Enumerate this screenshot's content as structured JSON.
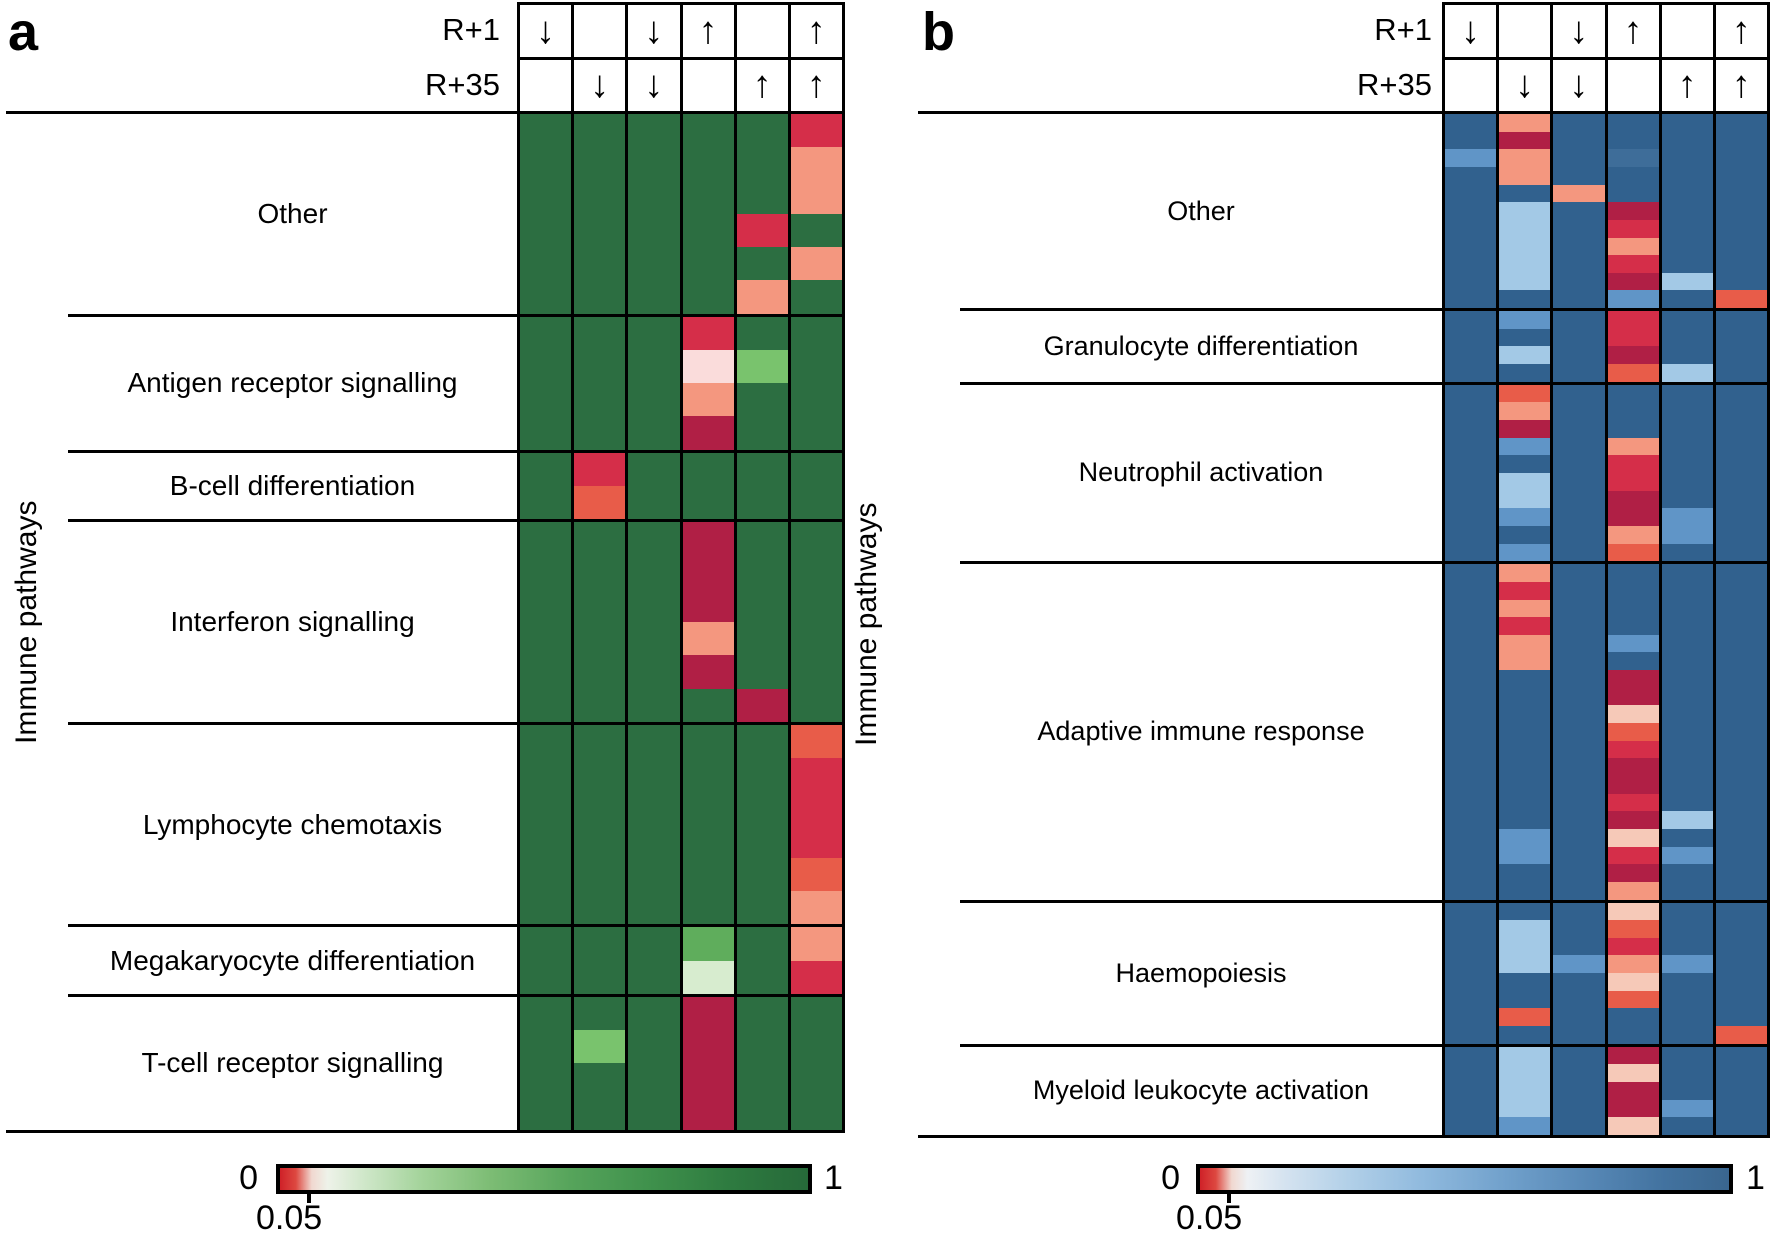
{
  "chart_data": [
    {
      "type": "heatmap",
      "panel_label": "a",
      "ylabel": "Immune pathways",
      "header_row_labels": [
        "R+1",
        "R+35"
      ],
      "header_arrows": {
        "r1": [
          "down",
          "",
          "down",
          "up",
          "",
          "up"
        ],
        "r35": [
          "",
          "down",
          "down",
          "",
          "up",
          "up"
        ]
      },
      "colorbar": {
        "min_label": "0",
        "tick_label": "0.05",
        "max_label": "1",
        "gradient": "red-white-green",
        "range": [
          0,
          1
        ],
        "significance_threshold": 0.05
      },
      "palette": {
        "G": "#2c6e41",
        "g": "#5fad5c",
        "gl": "#79c36d",
        "gp": "#d7eccf",
        "W": "#fadcdb",
        "C": "#b01f45",
        "R": "#d52e49",
        "T": "#e85c49",
        "S": "#f4977f",
        "P": "#f6c9b8"
      },
      "groups": [
        {
          "label": "Other",
          "rows": [
            [
              "G",
              "G",
              "G",
              "G",
              "G",
              "R"
            ],
            [
              "G",
              "G",
              "G",
              "G",
              "G",
              "S"
            ],
            [
              "G",
              "G",
              "G",
              "G",
              "G",
              "S"
            ],
            [
              "G",
              "G",
              "G",
              "G",
              "R",
              "G"
            ],
            [
              "G",
              "G",
              "G",
              "G",
              "G",
              "S"
            ],
            [
              "G",
              "G",
              "G",
              "G",
              "S",
              "G"
            ]
          ]
        },
        {
          "label": "Antigen receptor signalling",
          "rows": [
            [
              "G",
              "G",
              "G",
              "R",
              "G",
              "G"
            ],
            [
              "G",
              "G",
              "G",
              "W",
              "gl",
              "G"
            ],
            [
              "G",
              "G",
              "G",
              "S",
              "G",
              "G"
            ],
            [
              "G",
              "G",
              "G",
              "C",
              "G",
              "G"
            ]
          ]
        },
        {
          "label": "B-cell differentiation",
          "rows": [
            [
              "G",
              "R",
              "G",
              "G",
              "G",
              "G"
            ],
            [
              "G",
              "T",
              "G",
              "G",
              "G",
              "G"
            ]
          ]
        },
        {
          "label": "Interferon signalling",
          "rows": [
            [
              "G",
              "G",
              "G",
              "C",
              "G",
              "G"
            ],
            [
              "G",
              "G",
              "G",
              "C",
              "G",
              "G"
            ],
            [
              "G",
              "G",
              "G",
              "C",
              "G",
              "G"
            ],
            [
              "G",
              "G",
              "G",
              "S",
              "G",
              "G"
            ],
            [
              "G",
              "G",
              "G",
              "C",
              "G",
              "G"
            ],
            [
              "G",
              "G",
              "G",
              "G",
              "C",
              "G"
            ]
          ]
        },
        {
          "label": "Lymphocyte chemotaxis",
          "rows": [
            [
              "G",
              "G",
              "G",
              "G",
              "G",
              "T"
            ],
            [
              "G",
              "G",
              "G",
              "G",
              "G",
              "R"
            ],
            [
              "G",
              "G",
              "G",
              "G",
              "G",
              "R"
            ],
            [
              "G",
              "G",
              "G",
              "G",
              "G",
              "R"
            ],
            [
              "G",
              "G",
              "G",
              "G",
              "G",
              "T"
            ],
            [
              "G",
              "G",
              "G",
              "G",
              "G",
              "S"
            ]
          ]
        },
        {
          "label": "Megakaryocyte differentiation",
          "rows": [
            [
              "G",
              "G",
              "G",
              "g",
              "G",
              "S"
            ],
            [
              "G",
              "G",
              "G",
              "gp",
              "G",
              "R"
            ]
          ]
        },
        {
          "label": "T-cell receptor signalling",
          "rows": [
            [
              "G",
              "G",
              "G",
              "C",
              "G",
              "G"
            ],
            [
              "G",
              "gl",
              "G",
              "C",
              "G",
              "G"
            ],
            [
              "G",
              "G",
              "G",
              "C",
              "G",
              "G"
            ],
            [
              "G",
              "G",
              "G",
              "C",
              "G",
              "G"
            ]
          ]
        }
      ]
    },
    {
      "type": "heatmap",
      "panel_label": "b",
      "ylabel": "Immune pathways",
      "header_row_labels": [
        "R+1",
        "R+35"
      ],
      "header_arrows": {
        "r1": [
          "down",
          "",
          "down",
          "up",
          "",
          "up"
        ],
        "r35": [
          "",
          "down",
          "down",
          "",
          "up",
          "up"
        ]
      },
      "colorbar": {
        "min_label": "0",
        "tick_label": "0.05",
        "max_label": "1",
        "gradient": "red-white-blue",
        "range": [
          0,
          1
        ],
        "significance_threshold": 0.05
      },
      "palette": {
        "B": "#31618e",
        "b": "#6095c7",
        "bl": "#a3c9e6",
        "b2": "#3e6d99",
        "C": "#b01f45",
        "R": "#d52e49",
        "T": "#e85c49",
        "S": "#f4977f",
        "P": "#f6c9b8"
      },
      "groups": [
        {
          "label": "Other",
          "rows": [
            [
              "B",
              "S",
              "B",
              "B",
              "B",
              "B"
            ],
            [
              "B",
              "C",
              "B",
              "B",
              "B",
              "B"
            ],
            [
              "b",
              "S",
              "B",
              "b2",
              "B",
              "B"
            ],
            [
              "B",
              "S",
              "B",
              "B",
              "B",
              "B"
            ],
            [
              "B",
              "B",
              "S",
              "B",
              "B",
              "B"
            ],
            [
              "B",
              "bl",
              "B",
              "C",
              "B",
              "B"
            ],
            [
              "B",
              "bl",
              "B",
              "R",
              "B",
              "B"
            ],
            [
              "B",
              "bl",
              "B",
              "S",
              "B",
              "B"
            ],
            [
              "B",
              "bl",
              "B",
              "R",
              "B",
              "B"
            ],
            [
              "B",
              "bl",
              "B",
              "C",
              "bl",
              "B"
            ],
            [
              "B",
              "B",
              "B",
              "b",
              "B",
              "T"
            ]
          ]
        },
        {
          "label": "Granulocyte differentiation",
          "rows": [
            [
              "B",
              "b",
              "B",
              "R",
              "B",
              "B"
            ],
            [
              "B",
              "B",
              "B",
              "R",
              "B",
              "B"
            ],
            [
              "B",
              "bl",
              "B",
              "C",
              "B",
              "B"
            ],
            [
              "B",
              "B",
              "B",
              "T",
              "bl",
              "B"
            ]
          ]
        },
        {
          "label": "Neutrophil activation",
          "rows": [
            [
              "B",
              "T",
              "B",
              "B",
              "B",
              "B"
            ],
            [
              "B",
              "S",
              "B",
              "B",
              "B",
              "B"
            ],
            [
              "B",
              "C",
              "B",
              "B",
              "B",
              "B"
            ],
            [
              "B",
              "b",
              "B",
              "S",
              "B",
              "B"
            ],
            [
              "B",
              "B",
              "B",
              "R",
              "B",
              "B"
            ],
            [
              "B",
              "bl",
              "B",
              "R",
              "B",
              "B"
            ],
            [
              "B",
              "bl",
              "B",
              "C",
              "B",
              "B"
            ],
            [
              "B",
              "b",
              "B",
              "C",
              "b",
              "B"
            ],
            [
              "B",
              "B",
              "B",
              "S",
              "b",
              "B"
            ],
            [
              "B",
              "b",
              "B",
              "T",
              "B",
              "B"
            ]
          ]
        },
        {
          "label": "Adaptive immune response",
          "rows": [
            [
              "B",
              "S",
              "B",
              "B",
              "B",
              "B"
            ],
            [
              "B",
              "R",
              "B",
              "B",
              "B",
              "B"
            ],
            [
              "B",
              "S",
              "B",
              "B",
              "B",
              "B"
            ],
            [
              "B",
              "R",
              "B",
              "B",
              "B",
              "B"
            ],
            [
              "B",
              "S",
              "B",
              "b",
              "B",
              "B"
            ],
            [
              "B",
              "S",
              "B",
              "B",
              "B",
              "B"
            ],
            [
              "B",
              "B",
              "B",
              "C",
              "B",
              "B"
            ],
            [
              "B",
              "B",
              "B",
              "C",
              "B",
              "B"
            ],
            [
              "B",
              "B",
              "B",
              "P",
              "B",
              "B"
            ],
            [
              "B",
              "B",
              "B",
              "T",
              "B",
              "B"
            ],
            [
              "B",
              "B",
              "B",
              "R",
              "B",
              "B"
            ],
            [
              "B",
              "B",
              "B",
              "C",
              "B",
              "B"
            ],
            [
              "B",
              "B",
              "B",
              "C",
              "B",
              "B"
            ],
            [
              "B",
              "B",
              "B",
              "R",
              "B",
              "B"
            ],
            [
              "B",
              "B",
              "B",
              "C",
              "bl",
              "B"
            ],
            [
              "B",
              "b",
              "B",
              "P",
              "B",
              "B"
            ],
            [
              "B",
              "b",
              "B",
              "R",
              "b",
              "B"
            ],
            [
              "B",
              "B",
              "B",
              "C",
              "B",
              "B"
            ],
            [
              "B",
              "B",
              "B",
              "S",
              "B",
              "B"
            ]
          ]
        },
        {
          "label": "Haemopoiesis",
          "rows": [
            [
              "B",
              "B",
              "B",
              "P",
              "B",
              "B"
            ],
            [
              "B",
              "bl",
              "B",
              "T",
              "B",
              "B"
            ],
            [
              "B",
              "bl",
              "B",
              "R",
              "B",
              "B"
            ],
            [
              "B",
              "bl",
              "b",
              "S",
              "b",
              "B"
            ],
            [
              "B",
              "B",
              "B",
              "P",
              "B",
              "B"
            ],
            [
              "B",
              "B",
              "B",
              "T",
              "B",
              "B"
            ],
            [
              "B",
              "T",
              "B",
              "B",
              "B",
              "B"
            ],
            [
              "B",
              "B",
              "B",
              "B",
              "B",
              "T"
            ]
          ]
        },
        {
          "label": "Myeloid leukocyte activation",
          "rows": [
            [
              "B",
              "bl",
              "B",
              "C",
              "B",
              "B"
            ],
            [
              "B",
              "bl",
              "B",
              "P",
              "B",
              "B"
            ],
            [
              "B",
              "bl",
              "B",
              "C",
              "B",
              "B"
            ],
            [
              "B",
              "bl",
              "B",
              "C",
              "b",
              "B"
            ],
            [
              "B",
              "b",
              "B",
              "P",
              "B",
              "B"
            ]
          ]
        }
      ]
    }
  ]
}
